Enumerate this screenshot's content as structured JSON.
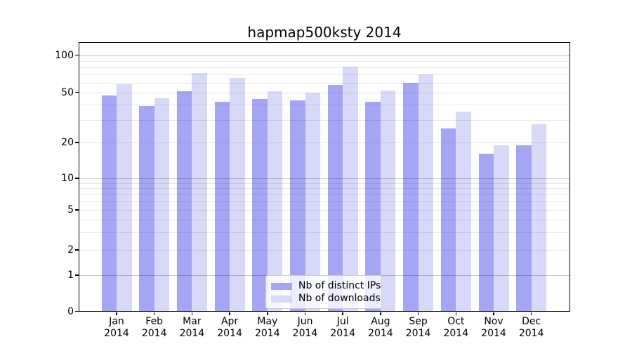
{
  "chart_data": {
    "type": "bar",
    "title": "hapmap500ksty 2014",
    "categories": [
      "Jan 2014",
      "Feb 2014",
      "Mar 2014",
      "Apr 2014",
      "May 2014",
      "Jun 2014",
      "Jul 2014",
      "Aug 2014",
      "Sep 2014",
      "Oct 2014",
      "Nov 2014",
      "Dec 2014"
    ],
    "x_tick_months": [
      "Jan",
      "Feb",
      "Mar",
      "Apr",
      "May",
      "Jun",
      "Jul",
      "Aug",
      "Sep",
      "Oct",
      "Nov",
      "Dec"
    ],
    "x_tick_year": "2014",
    "series": [
      {
        "name": "Nb of distinct IPs",
        "color": "#a5a5f5",
        "values": [
          47,
          39,
          51,
          42,
          44,
          43,
          57,
          42,
          60,
          26,
          16,
          19
        ]
      },
      {
        "name": "Nb of downloads",
        "color": "#d8d8f8",
        "values": [
          58,
          45,
          72,
          65,
          51,
          50,
          81,
          52,
          70,
          35,
          19,
          28
        ]
      }
    ],
    "xlabel": "",
    "ylabel": "",
    "yscale": "symlog",
    "ylim": [
      0,
      130
    ],
    "yticks_labeled": [
      100,
      50,
      20,
      10,
      5,
      2,
      1,
      0
    ],
    "ygrid_major": [
      1,
      10,
      100
    ],
    "ygrid_minor": [
      2,
      3,
      4,
      5,
      6,
      7,
      8,
      9,
      20,
      30,
      40,
      50,
      60,
      70,
      80,
      90
    ],
    "grid": "horizontal log gridlines, drawn over bars",
    "legend_position": "bottom-center inside plot"
  },
  "colors": {
    "background": "#ffffff",
    "axis_frame": "#000000",
    "grid_major": "rgba(0,0,0,0.22)",
    "grid_minor": "rgba(0,0,0,0.09)",
    "bar_distinct_ips": "#a5a5f5",
    "bar_downloads": "#d8d8f8",
    "legend_border": "#cccccc"
  }
}
